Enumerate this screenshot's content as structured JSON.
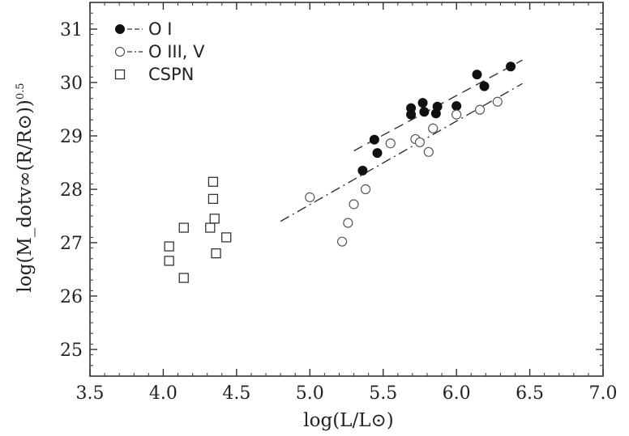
{
  "chart_data": {
    "type": "scatter",
    "xlabel": "log(L/L⊙)",
    "ylabel": "log(M_dotv∞(R/R⊙)⁰ᐧ⁵)",
    "ylabel_main": "log(M_dotv∞(R/R⊙)",
    "ylabel_sup": "0.5",
    "ylabel_close": ")",
    "xlim": [
      3.5,
      7.0
    ],
    "ylim": [
      24.5,
      31.5
    ],
    "xticks": [
      3.5,
      4.0,
      4.5,
      5.0,
      5.5,
      6.0,
      6.5,
      7.0
    ],
    "xtick_labels": [
      "3.5",
      "4.0",
      "4.5",
      "5.0",
      "5.5",
      "6.0",
      "6.5",
      "7.0"
    ],
    "yticks": [
      25,
      26,
      27,
      28,
      29,
      30,
      31
    ],
    "ytick_labels": [
      "25",
      "26",
      "27",
      "28",
      "29",
      "30",
      "31"
    ],
    "grid": false,
    "legend_position": "top-left",
    "series": [
      {
        "name": "O I",
        "marker": "filled-circle",
        "points": [
          [
            5.36,
            28.35
          ],
          [
            5.44,
            28.93
          ],
          [
            5.46,
            28.68
          ],
          [
            5.69,
            29.52
          ],
          [
            5.69,
            29.4
          ],
          [
            5.77,
            29.62
          ],
          [
            5.78,
            29.45
          ],
          [
            5.86,
            29.42
          ],
          [
            5.87,
            29.55
          ],
          [
            6.0,
            29.56
          ],
          [
            6.14,
            30.15
          ],
          [
            6.19,
            29.93
          ],
          [
            6.37,
            30.3
          ]
        ],
        "fit_line": {
          "style": "dashed",
          "x": [
            5.3,
            6.45
          ],
          "y": [
            28.72,
            30.42
          ]
        }
      },
      {
        "name": "O III, V",
        "marker": "open-circle",
        "points": [
          [
            5.0,
            27.85
          ],
          [
            5.22,
            27.02
          ],
          [
            5.26,
            27.37
          ],
          [
            5.3,
            27.72
          ],
          [
            5.38,
            28.0
          ],
          [
            5.55,
            28.86
          ],
          [
            5.72,
            28.94
          ],
          [
            5.75,
            28.88
          ],
          [
            5.81,
            28.7
          ],
          [
            5.84,
            29.14
          ],
          [
            6.0,
            29.4
          ],
          [
            6.16,
            29.49
          ],
          [
            6.28,
            29.64
          ]
        ],
        "fit_line": {
          "style": "dash-dot",
          "x": [
            4.8,
            6.45
          ],
          "y": [
            27.4,
            29.98
          ]
        }
      },
      {
        "name": "CSPN",
        "marker": "open-square",
        "points": [
          [
            4.04,
            26.93
          ],
          [
            4.04,
            26.66
          ],
          [
            4.14,
            27.28
          ],
          [
            4.14,
            26.34
          ],
          [
            4.32,
            27.28
          ],
          [
            4.34,
            28.14
          ],
          [
            4.34,
            27.82
          ],
          [
            4.35,
            27.45
          ],
          [
            4.36,
            26.8
          ],
          [
            4.43,
            27.1
          ]
        ]
      }
    ]
  }
}
